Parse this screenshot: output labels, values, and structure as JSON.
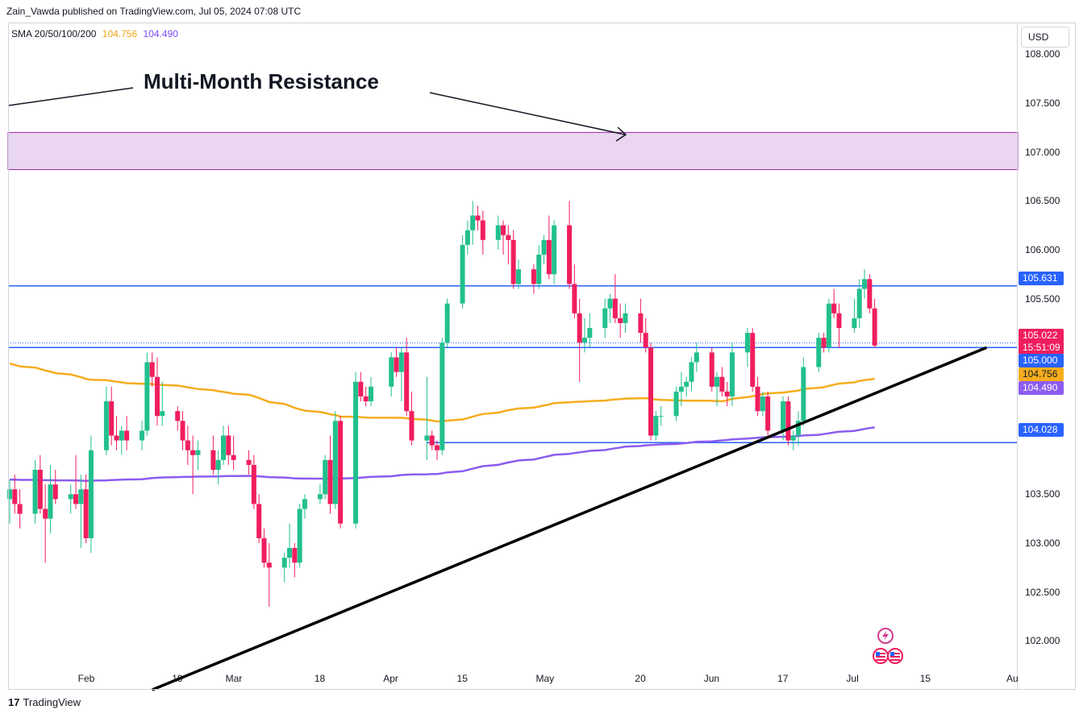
{
  "header": {
    "published": "Zain_Vawda published on TradingView.com, Jul 05, 2024 07:08 UTC"
  },
  "legend": {
    "label": "SMA 20/50/100/200",
    "value1": "104.756",
    "value2": "104.490"
  },
  "currency_button": "USD",
  "annotation": "Multi-Month Resistance",
  "footer": {
    "brand": "TradingView",
    "logo": "17"
  },
  "price_tags": {
    "resistance": "105.631",
    "last": "105.022",
    "countdown": "15:51:09",
    "level": "105.000",
    "sma_orange": "104.756",
    "sma_purple": "104.490",
    "support": "104.028"
  },
  "colors": {
    "up": "#22c08e",
    "down": "#f01e5e",
    "blue": "#2962ff",
    "orange": "#f5ad1e",
    "purple": "#8c5cf0",
    "zone": "#ead6f0",
    "zone_border": "#9c27b0"
  },
  "chart_data": {
    "type": "candlestick",
    "title": "",
    "y_ticks": [
      "108.000",
      "107.500",
      "107.000",
      "106.500",
      "106.000",
      "105.500",
      "103.500",
      "103.000",
      "102.500",
      "102.000"
    ],
    "x_ticks": [
      "Feb",
      "19",
      "Mar",
      "18",
      "Apr",
      "15",
      "May",
      "20",
      "Jun",
      "17",
      "Jul",
      "15",
      "Au"
    ],
    "x_tick_dates": [
      "2024-02-01",
      "2024-02-19",
      "2024-03-01",
      "2024-03-18",
      "2024-04-01",
      "2024-04-15",
      "2024-05-01",
      "2024-05-20",
      "2024-06-03",
      "2024-06-17",
      "2024-07-01",
      "2024-07-15",
      "2024-08-01"
    ],
    "ylim": [
      101.5,
      108.2
    ],
    "resistance_zone": [
      106.82,
      107.2
    ],
    "horizontal_lines": [
      105.631,
      105.0,
      104.028
    ],
    "trendline": {
      "from": {
        "date": "2024-02-14",
        "price": 101.5
      },
      "to": {
        "date": "2024-07-27",
        "price": 105.0
      }
    },
    "candles": [
      {
        "date": "2024-01-17",
        "o": 103.45,
        "h": 103.65,
        "l": 103.2,
        "c": 103.55
      },
      {
        "date": "2024-01-18",
        "o": 103.55,
        "h": 103.7,
        "l": 103.3,
        "c": 103.4
      },
      {
        "date": "2024-01-19",
        "o": 103.4,
        "h": 103.55,
        "l": 103.15,
        "c": 103.3
      },
      {
        "date": "2024-01-22",
        "o": 103.3,
        "h": 103.85,
        "l": 103.2,
        "c": 103.75
      },
      {
        "date": "2024-01-23",
        "o": 103.75,
        "h": 103.9,
        "l": 103.3,
        "c": 103.35
      },
      {
        "date": "2024-01-24",
        "o": 103.35,
        "h": 103.6,
        "l": 102.8,
        "c": 103.25
      },
      {
        "date": "2024-01-25",
        "o": 103.25,
        "h": 103.8,
        "l": 103.1,
        "c": 103.6
      },
      {
        "date": "2024-01-26",
        "o": 103.6,
        "h": 103.75,
        "l": 103.4,
        "c": 103.45
      },
      {
        "date": "2024-01-29",
        "o": 103.45,
        "h": 103.6,
        "l": 103.3,
        "c": 103.5
      },
      {
        "date": "2024-01-30",
        "o": 103.5,
        "h": 103.9,
        "l": 103.35,
        "c": 103.4
      },
      {
        "date": "2024-01-31",
        "o": 103.4,
        "h": 103.7,
        "l": 102.95,
        "c": 103.55
      },
      {
        "date": "2024-02-01",
        "o": 103.55,
        "h": 103.7,
        "l": 103.0,
        "c": 103.05
      },
      {
        "date": "2024-02-02",
        "o": 103.05,
        "h": 104.1,
        "l": 102.9,
        "c": 103.95
      },
      {
        "date": "2024-02-05",
        "o": 103.95,
        "h": 104.6,
        "l": 103.9,
        "c": 104.45
      },
      {
        "date": "2024-02-06",
        "o": 104.45,
        "h": 104.6,
        "l": 104.0,
        "c": 104.1
      },
      {
        "date": "2024-02-07",
        "o": 104.1,
        "h": 104.3,
        "l": 103.95,
        "c": 104.05
      },
      {
        "date": "2024-02-08",
        "o": 104.05,
        "h": 104.2,
        "l": 103.9,
        "c": 104.15
      },
      {
        "date": "2024-02-09",
        "o": 104.15,
        "h": 104.3,
        "l": 103.95,
        "c": 104.05
      },
      {
        "date": "2024-02-12",
        "o": 104.05,
        "h": 104.25,
        "l": 103.95,
        "c": 104.15
      },
      {
        "date": "2024-02-13",
        "o": 104.15,
        "h": 104.95,
        "l": 104.1,
        "c": 104.85
      },
      {
        "date": "2024-02-14",
        "o": 104.85,
        "h": 104.95,
        "l": 104.6,
        "c": 104.7
      },
      {
        "date": "2024-02-15",
        "o": 104.7,
        "h": 104.9,
        "l": 104.2,
        "c": 104.3
      },
      {
        "date": "2024-02-16",
        "o": 104.3,
        "h": 104.65,
        "l": 104.2,
        "c": 104.35
      },
      {
        "date": "2024-02-19",
        "o": 104.35,
        "h": 104.4,
        "l": 104.15,
        "c": 104.25
      },
      {
        "date": "2024-02-20",
        "o": 104.25,
        "h": 104.35,
        "l": 103.95,
        "c": 104.05
      },
      {
        "date": "2024-02-21",
        "o": 104.05,
        "h": 104.2,
        "l": 103.8,
        "c": 103.95
      },
      {
        "date": "2024-02-22",
        "o": 103.95,
        "h": 104.1,
        "l": 103.5,
        "c": 103.9
      },
      {
        "date": "2024-02-23",
        "o": 103.9,
        "h": 104.05,
        "l": 103.75,
        "c": 103.95
      },
      {
        "date": "2024-02-26",
        "o": 103.95,
        "h": 104.1,
        "l": 103.7,
        "c": 103.75
      },
      {
        "date": "2024-02-27",
        "o": 103.75,
        "h": 103.95,
        "l": 103.6,
        "c": 103.85
      },
      {
        "date": "2024-02-28",
        "o": 103.85,
        "h": 104.2,
        "l": 103.8,
        "c": 104.1
      },
      {
        "date": "2024-02-29",
        "o": 104.1,
        "h": 104.2,
        "l": 103.8,
        "c": 103.9
      },
      {
        "date": "2024-03-01",
        "o": 103.9,
        "h": 104.1,
        "l": 103.75,
        "c": 103.85
      },
      {
        "date": "2024-03-04",
        "o": 103.85,
        "h": 103.95,
        "l": 103.7,
        "c": 103.8
      },
      {
        "date": "2024-03-05",
        "o": 103.8,
        "h": 103.9,
        "l": 103.35,
        "c": 103.4
      },
      {
        "date": "2024-03-06",
        "o": 103.4,
        "h": 103.5,
        "l": 103.0,
        "c": 103.05
      },
      {
        "date": "2024-03-07",
        "o": 103.05,
        "h": 103.15,
        "l": 102.75,
        "c": 102.8
      },
      {
        "date": "2024-03-08",
        "o": 102.8,
        "h": 103.0,
        "l": 102.35,
        "c": 102.75
      },
      {
        "date": "2024-03-11",
        "o": 102.75,
        "h": 102.9,
        "l": 102.6,
        "c": 102.85
      },
      {
        "date": "2024-03-12",
        "o": 102.85,
        "h": 103.2,
        "l": 102.75,
        "c": 102.95
      },
      {
        "date": "2024-03-13",
        "o": 102.95,
        "h": 103.0,
        "l": 102.65,
        "c": 102.8
      },
      {
        "date": "2024-03-14",
        "o": 102.8,
        "h": 103.4,
        "l": 102.75,
        "c": 103.35
      },
      {
        "date": "2024-03-15",
        "o": 103.35,
        "h": 103.5,
        "l": 103.25,
        "c": 103.45
      },
      {
        "date": "2024-03-18",
        "o": 103.45,
        "h": 103.6,
        "l": 103.4,
        "c": 103.5
      },
      {
        "date": "2024-03-19",
        "o": 103.5,
        "h": 103.9,
        "l": 103.45,
        "c": 103.85
      },
      {
        "date": "2024-03-20",
        "o": 103.85,
        "h": 104.1,
        "l": 103.3,
        "c": 103.4
      },
      {
        "date": "2024-03-21",
        "o": 103.4,
        "h": 104.35,
        "l": 103.35,
        "c": 104.25
      },
      {
        "date": "2024-03-22",
        "o": 104.25,
        "h": 104.3,
        "l": 103.15,
        "c": 103.2
      },
      {
        "date": "2024-03-25",
        "o": 103.2,
        "h": 104.75,
        "l": 103.15,
        "c": 104.65
      },
      {
        "date": "2024-03-26",
        "o": 104.65,
        "h": 104.75,
        "l": 104.45,
        "c": 104.5
      },
      {
        "date": "2024-03-27",
        "o": 104.5,
        "h": 104.6,
        "l": 104.4,
        "c": 104.45
      },
      {
        "date": "2024-03-28",
        "o": 104.45,
        "h": 104.7,
        "l": 104.4,
        "c": 104.6
      },
      {
        "date": "2024-04-01",
        "o": 104.6,
        "h": 104.95,
        "l": 104.5,
        "c": 104.9
      },
      {
        "date": "2024-04-02",
        "o": 104.9,
        "h": 105.0,
        "l": 104.7,
        "c": 104.75
      },
      {
        "date": "2024-04-03",
        "o": 104.75,
        "h": 105.0,
        "l": 104.45,
        "c": 104.95
      },
      {
        "date": "2024-04-04",
        "o": 104.95,
        "h": 105.1,
        "l": 104.3,
        "c": 104.35
      },
      {
        "date": "2024-04-05",
        "o": 104.35,
        "h": 104.55,
        "l": 104.0,
        "c": 104.05
      },
      {
        "date": "2024-04-08",
        "o": 104.05,
        "h": 104.7,
        "l": 103.85,
        "c": 104.1
      },
      {
        "date": "2024-04-09",
        "o": 104.1,
        "h": 104.15,
        "l": 103.95,
        "c": 104.0
      },
      {
        "date": "2024-04-10",
        "o": 104.0,
        "h": 104.05,
        "l": 103.85,
        "c": 103.95
      },
      {
        "date": "2024-04-11",
        "o": 103.95,
        "h": 105.1,
        "l": 103.9,
        "c": 105.05
      },
      {
        "date": "2024-04-12",
        "o": 105.05,
        "h": 105.5,
        "l": 105.0,
        "c": 105.45
      },
      {
        "date": "2024-04-15",
        "o": 105.45,
        "h": 106.15,
        "l": 105.4,
        "c": 106.05
      },
      {
        "date": "2024-04-16",
        "o": 106.05,
        "h": 106.3,
        "l": 105.95,
        "c": 106.2
      },
      {
        "date": "2024-04-17",
        "o": 106.2,
        "h": 106.5,
        "l": 106.05,
        "c": 106.35
      },
      {
        "date": "2024-04-18",
        "o": 106.35,
        "h": 106.45,
        "l": 106.2,
        "c": 106.3
      },
      {
        "date": "2024-04-19",
        "o": 106.3,
        "h": 106.4,
        "l": 105.95,
        "c": 106.1
      },
      {
        "date": "2024-04-22",
        "o": 106.1,
        "h": 106.35,
        "l": 106.0,
        "c": 106.25
      },
      {
        "date": "2024-04-23",
        "o": 106.25,
        "h": 106.3,
        "l": 105.95,
        "c": 106.15
      },
      {
        "date": "2024-04-24",
        "o": 106.15,
        "h": 106.25,
        "l": 105.85,
        "c": 106.1
      },
      {
        "date": "2024-04-25",
        "o": 106.1,
        "h": 106.2,
        "l": 105.6,
        "c": 105.65
      },
      {
        "date": "2024-04-26",
        "o": 105.65,
        "h": 105.9,
        "l": 105.6,
        "c": 105.8
      },
      {
        "date": "2024-04-29",
        "o": 105.8,
        "h": 105.85,
        "l": 105.55,
        "c": 105.65
      },
      {
        "date": "2024-04-30",
        "o": 105.65,
        "h": 106.05,
        "l": 105.6,
        "c": 105.95
      },
      {
        "date": "2024-05-01",
        "o": 105.95,
        "h": 106.15,
        "l": 105.85,
        "c": 106.1
      },
      {
        "date": "2024-05-02",
        "o": 106.1,
        "h": 106.35,
        "l": 105.7,
        "c": 105.75
      },
      {
        "date": "2024-05-03",
        "o": 105.75,
        "h": 106.3,
        "l": 105.65,
        "c": 106.25
      },
      {
        "date": "2024-05-06",
        "o": 106.25,
        "h": 106.5,
        "l": 105.6,
        "c": 105.65
      },
      {
        "date": "2024-05-07",
        "o": 105.65,
        "h": 105.85,
        "l": 105.3,
        "c": 105.35
      },
      {
        "date": "2024-05-08",
        "o": 105.35,
        "h": 105.5,
        "l": 104.65,
        "c": 105.05
      },
      {
        "date": "2024-05-09",
        "o": 105.05,
        "h": 105.3,
        "l": 104.95,
        "c": 105.1
      },
      {
        "date": "2024-05-10",
        "o": 105.1,
        "h": 105.35,
        "l": 105.0,
        "c": 105.2
      },
      {
        "date": "2024-05-13",
        "o": 105.2,
        "h": 105.5,
        "l": 105.1,
        "c": 105.4
      },
      {
        "date": "2024-05-14",
        "o": 105.4,
        "h": 105.55,
        "l": 105.25,
        "c": 105.5
      },
      {
        "date": "2024-05-15",
        "o": 105.5,
        "h": 105.75,
        "l": 105.25,
        "c": 105.3
      },
      {
        "date": "2024-05-16",
        "o": 105.3,
        "h": 105.45,
        "l": 105.1,
        "c": 105.25
      },
      {
        "date": "2024-05-17",
        "o": 105.25,
        "h": 105.45,
        "l": 105.15,
        "c": 105.35
      },
      {
        "date": "2024-05-20",
        "o": 105.35,
        "h": 105.5,
        "l": 105.05,
        "c": 105.15
      },
      {
        "date": "2024-05-21",
        "o": 105.15,
        "h": 105.3,
        "l": 104.95,
        "c": 105.0
      },
      {
        "date": "2024-05-22",
        "o": 105.0,
        "h": 105.05,
        "l": 104.05,
        "c": 104.1
      },
      {
        "date": "2024-05-23",
        "o": 104.1,
        "h": 104.35,
        "l": 104.05,
        "c": 104.3
      },
      {
        "date": "2024-05-24",
        "o": 104.3,
        "h": 104.4,
        "l": 104.2,
        "c": 104.3
      },
      {
        "date": "2024-05-27",
        "o": 104.3,
        "h": 104.6,
        "l": 104.25,
        "c": 104.55
      },
      {
        "date": "2024-05-28",
        "o": 104.55,
        "h": 104.75,
        "l": 104.4,
        "c": 104.6
      },
      {
        "date": "2024-05-29",
        "o": 104.6,
        "h": 104.7,
        "l": 104.5,
        "c": 104.65
      },
      {
        "date": "2024-05-30",
        "o": 104.65,
        "h": 104.9,
        "l": 104.55,
        "c": 104.85
      },
      {
        "date": "2024-05-31",
        "o": 104.85,
        "h": 105.05,
        "l": 104.75,
        "c": 104.95
      },
      {
        "date": "2024-06-03",
        "o": 104.95,
        "h": 105.0,
        "l": 104.55,
        "c": 104.6
      },
      {
        "date": "2024-06-04",
        "o": 104.6,
        "h": 104.75,
        "l": 104.4,
        "c": 104.7
      },
      {
        "date": "2024-06-05",
        "o": 104.7,
        "h": 104.8,
        "l": 104.5,
        "c": 104.55
      },
      {
        "date": "2024-06-06",
        "o": 104.55,
        "h": 104.65,
        "l": 104.4,
        "c": 104.5
      },
      {
        "date": "2024-06-07",
        "o": 104.5,
        "h": 105.05,
        "l": 104.4,
        "c": 104.95
      },
      {
        "date": "2024-06-10",
        "o": 104.95,
        "h": 105.2,
        "l": 104.8,
        "c": 105.15
      },
      {
        "date": "2024-06-11",
        "o": 105.15,
        "h": 105.2,
        "l": 104.55,
        "c": 104.6
      },
      {
        "date": "2024-06-12",
        "o": 104.6,
        "h": 104.7,
        "l": 104.3,
        "c": 104.35
      },
      {
        "date": "2024-06-13",
        "o": 104.35,
        "h": 104.55,
        "l": 104.3,
        "c": 104.5
      },
      {
        "date": "2024-06-14",
        "o": 104.5,
        "h": 104.55,
        "l": 104.1,
        "c": 104.15
      },
      {
        "date": "2024-06-17",
        "o": 104.15,
        "h": 104.5,
        "l": 104.05,
        "c": 104.45
      },
      {
        "date": "2024-06-18",
        "o": 104.45,
        "h": 104.5,
        "l": 104.0,
        "c": 104.05
      },
      {
        "date": "2024-06-19",
        "o": 104.05,
        "h": 104.15,
        "l": 103.95,
        "c": 104.1
      },
      {
        "date": "2024-06-20",
        "o": 104.1,
        "h": 104.35,
        "l": 104.0,
        "c": 104.25
      },
      {
        "date": "2024-06-21",
        "o": 104.25,
        "h": 104.9,
        "l": 104.2,
        "c": 104.8
      },
      {
        "date": "2024-06-24",
        "o": 104.8,
        "h": 105.15,
        "l": 104.75,
        "c": 105.1
      },
      {
        "date": "2024-06-25",
        "o": 105.1,
        "h": 105.15,
        "l": 104.95,
        "c": 105.0
      },
      {
        "date": "2024-06-26",
        "o": 105.0,
        "h": 105.5,
        "l": 104.95,
        "c": 105.45
      },
      {
        "date": "2024-06-27",
        "o": 105.45,
        "h": 105.6,
        "l": 105.3,
        "c": 105.35
      },
      {
        "date": "2024-06-28",
        "o": 105.35,
        "h": 105.45,
        "l": 105.0,
        "c": 105.2
      },
      {
        "date": "2024-07-01",
        "o": 105.2,
        "h": 105.5,
        "l": 105.15,
        "c": 105.3
      },
      {
        "date": "2024-07-02",
        "o": 105.3,
        "h": 105.7,
        "l": 105.2,
        "c": 105.6
      },
      {
        "date": "2024-07-03",
        "o": 105.6,
        "h": 105.8,
        "l": 105.5,
        "c": 105.7
      },
      {
        "date": "2024-07-04",
        "o": 105.7,
        "h": 105.75,
        "l": 105.35,
        "c": 105.4
      },
      {
        "date": "2024-07-05",
        "o": 105.4,
        "h": 105.5,
        "l": 105.0,
        "c": 105.02
      }
    ]
  }
}
